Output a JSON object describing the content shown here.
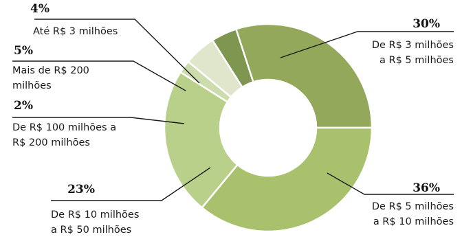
{
  "chart_data": {
    "type": "pie",
    "donut": true,
    "unit": "%",
    "slices": [
      {
        "label": "De R$ 3 milhões a R$ 5 milhões",
        "lines": [
          "De R$ 3 milhões",
          "a R$ 5 milhões"
        ],
        "value": 30,
        "pct_text": "30%",
        "color": "#93a85a"
      },
      {
        "label": "De R$ 5 milhões a R$ 10 milhões",
        "lines": [
          "De R$ 5 milhões",
          "a R$ 10 milhões"
        ],
        "value": 36,
        "pct_text": "36%",
        "color": "#a9c06d"
      },
      {
        "label": "De R$ 10 milhões a R$ 50 milhões",
        "lines": [
          "De R$ 10 milhões",
          "a R$ 50 milhões"
        ],
        "value": 23,
        "pct_text": "23%",
        "color": "#b9d08a"
      },
      {
        "label": "De R$ 100 milhões a R$ 200 milhões",
        "lines": [
          "De R$ 100 milhões a",
          "R$ 200 milhões"
        ],
        "value": 2,
        "pct_text": "2%",
        "color": "#cddcad"
      },
      {
        "label": "Mais de R$ 200 milhões",
        "lines": [
          "Mais de R$ 200",
          "milhões"
        ],
        "value": 5,
        "pct_text": "5%",
        "color": "#dfe6cc"
      },
      {
        "label": "Até R$ 3 milhões",
        "lines": [
          "Até R$ 3 milhões"
        ],
        "value": 4,
        "pct_text": "4%",
        "color": "#7f9650"
      }
    ]
  }
}
